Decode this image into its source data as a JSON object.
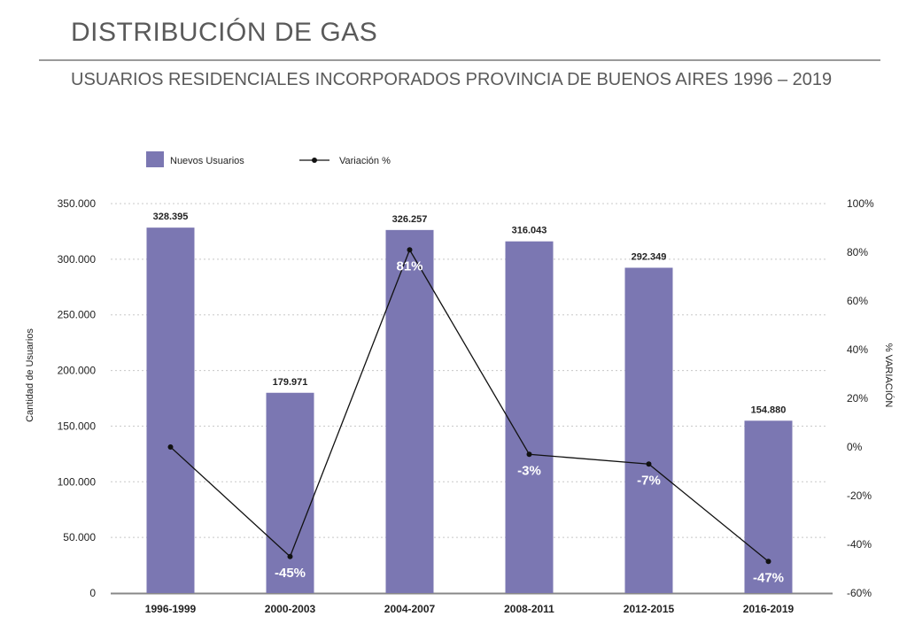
{
  "header": {
    "title": "DISTRIBUCIÓN DE GAS",
    "subtitle": "USUARIOS RESIDENCIALES INCORPORADOS PROVINCIA DE BUENOS AIRES 1996 – 2019"
  },
  "chart_data": {
    "type": "bar",
    "categories": [
      "1996-1999",
      "2000-2003",
      "2004-2007",
      "2008-2011",
      "2012-2015",
      "2016-2019"
    ],
    "series": [
      {
        "name": "Nuevos Usuarios",
        "type": "bar",
        "axis": "left",
        "color": "#7b77b2",
        "values": [
          328395,
          179971,
          326257,
          316043,
          292349,
          154880
        ],
        "labels": [
          "328.395",
          "179.971",
          "326.257",
          "316.043",
          "292.349",
          "154.880"
        ]
      },
      {
        "name": "Variación %",
        "type": "line",
        "axis": "right",
        "color": "#111111",
        "values": [
          0,
          -45,
          81,
          -3,
          -7,
          -47
        ],
        "labels": [
          "",
          "-45%",
          "81%",
          "-3%",
          "-7%",
          "-47%"
        ]
      }
    ],
    "ylabel": "Cantidad de Usuarios",
    "y2label": "% VARIACIÓN",
    "ylim": [
      0,
      350000
    ],
    "y2lim": [
      -60,
      100
    ],
    "yticks": [
      "0",
      "50.000",
      "100.000",
      "150.000",
      "200.000",
      "250.000",
      "300.000",
      "350.000"
    ],
    "y2ticks": [
      "-60%",
      "-40%",
      "-20%",
      "0%",
      "20%",
      "40%",
      "60%",
      "80%",
      "100%"
    ],
    "grid": true,
    "legend_position": "top-left"
  }
}
